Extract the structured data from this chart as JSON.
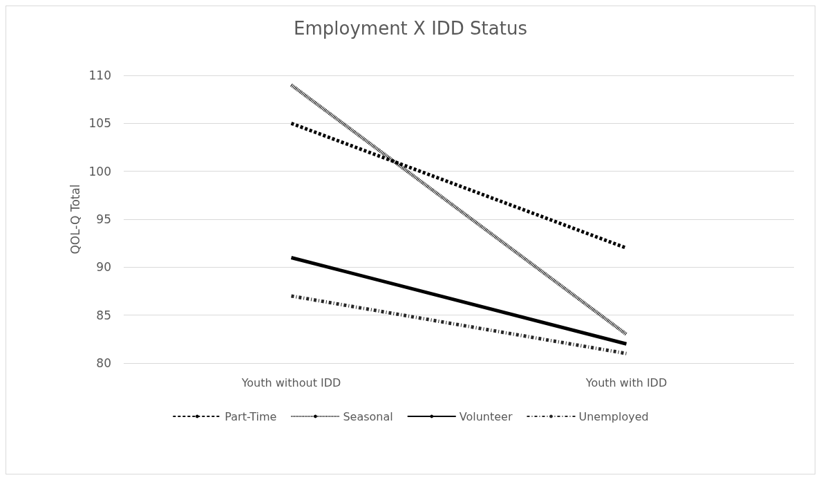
{
  "chart_data": {
    "type": "line",
    "title": "Employment X IDD Status",
    "ylabel": "QOL-Q Total",
    "categories": [
      "Youth without IDD",
      "Youth with IDD"
    ],
    "series": [
      {
        "name": "Part-Time",
        "color": "#000000",
        "line_style": "dashed",
        "values": [
          105,
          92
        ]
      },
      {
        "name": "Seasonal",
        "color": "#000000",
        "line_style": "dotted",
        "values": [
          109,
          83
        ]
      },
      {
        "name": "Volunteer",
        "color": "#000000",
        "line_style": "solid",
        "values": [
          91,
          82
        ]
      },
      {
        "name": "Unemployed",
        "color": "#262626",
        "line_style": "dashdot",
        "values": [
          87,
          81
        ]
      }
    ],
    "ylim": [
      80,
      110
    ],
    "yticks": [
      80,
      85,
      90,
      95,
      100,
      105,
      110
    ],
    "grid": "y",
    "legend": "bottom",
    "marker": "none"
  }
}
